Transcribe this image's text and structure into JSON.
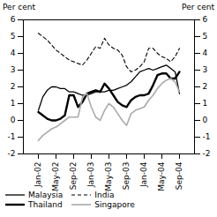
{
  "chart_data": {
    "type": "line",
    "y_label": "Per cent",
    "y2_label": "Per cent",
    "categories": [
      "Jan-02",
      null,
      null,
      null,
      "May-02",
      null,
      null,
      null,
      "Sep-02",
      null,
      null,
      null,
      "Jan-03",
      null,
      null,
      null,
      "May-03",
      null,
      null,
      null,
      "Sep-03",
      null,
      null,
      null,
      "Jan-04",
      null,
      null,
      null,
      "May-04",
      null,
      null,
      null,
      "Sep-04"
    ],
    "series": [
      {
        "name": "Malaysia",
        "color": "#000000",
        "line_style": "solid",
        "values": [
          0.6,
          1.4,
          1.8,
          2.0,
          2.0,
          1.9,
          1.9,
          1.7,
          1.7,
          1.6,
          1.5,
          1.5,
          1.6,
          1.7,
          1.7,
          1.7,
          1.8,
          1.8,
          1.9,
          2.0,
          2.1,
          2.3,
          2.6,
          2.9,
          3.0,
          3.1,
          3.0,
          3.1,
          3.2,
          3.3,
          3.1,
          2.9,
          1.6
        ]
      },
      {
        "name": "India",
        "color": "#000000",
        "line_style": "dashed",
        "values": [
          5.2,
          5.0,
          4.8,
          4.5,
          4.2,
          4.0,
          3.8,
          3.6,
          3.5,
          3.4,
          3.3,
          3.6,
          4.0,
          4.4,
          4.3,
          4.9,
          4.5,
          4.3,
          4.2,
          3.9,
          3.2,
          2.9,
          3.0,
          3.2,
          3.5,
          4.3,
          4.3,
          4.0,
          3.8,
          3.7,
          3.5,
          3.8,
          4.3
        ]
      },
      {
        "name": "Thailand",
        "color": "#000000",
        "line_style": "solid",
        "values": [
          0.5,
          0.3,
          0.1,
          0.0,
          0.0,
          0.1,
          0.3,
          1.5,
          1.5,
          0.8,
          1.1,
          1.6,
          1.7,
          1.8,
          1.7,
          2.2,
          1.9,
          1.5,
          1.1,
          0.9,
          0.8,
          1.2,
          1.4,
          1.5,
          1.5,
          1.6,
          2.1,
          2.7,
          2.8,
          2.8,
          2.5,
          2.5,
          2.9
        ]
      },
      {
        "name": "Singapore",
        "color": "#aaaaaa",
        "line_style": "solid",
        "values": [
          -1.2,
          -0.9,
          -0.7,
          -0.5,
          -0.4,
          -0.2,
          0.0,
          0.2,
          0.2,
          0.2,
          1.4,
          1.6,
          0.8,
          0.2,
          0.0,
          0.6,
          1.0,
          0.8,
          0.4,
          0.0,
          -0.3,
          0.4,
          0.6,
          0.7,
          0.8,
          1.2,
          1.5,
          1.9,
          2.2,
          2.4,
          2.5,
          2.3,
          1.7
        ]
      }
    ],
    "ylim": [
      -2,
      6
    ],
    "yticks": [
      -2,
      -1,
      0,
      1,
      2,
      3,
      4,
      5,
      6
    ],
    "y2lim": [
      -2,
      6
    ],
    "y2ticks": [
      -2,
      -1,
      0,
      1,
      2,
      3,
      4,
      5,
      6
    ],
    "grid": false,
    "legend": "bottom"
  }
}
